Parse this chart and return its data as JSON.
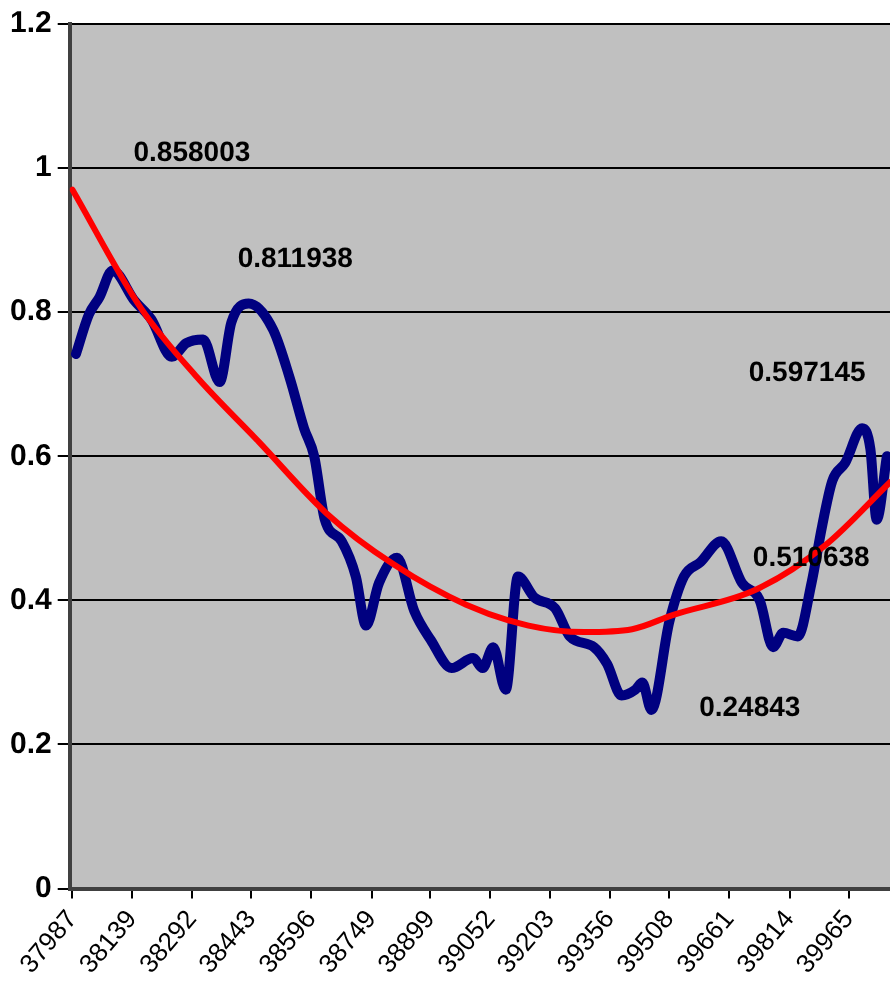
{
  "chart_data": {
    "type": "line",
    "xlim": [
      37980,
      40070
    ],
    "ylim": [
      0,
      1.2
    ],
    "xticks": [
      37987,
      38139,
      38292,
      38443,
      38596,
      38749,
      38899,
      39052,
      39203,
      39356,
      39508,
      39661,
      39814,
      39965
    ],
    "yticks": [
      0,
      0.2,
      0.4,
      0.6,
      0.8,
      1,
      1.2
    ],
    "grid": "y",
    "legend": false,
    "marker": "none",
    "line_style": "solid",
    "series": [
      {
        "color": "#000080",
        "x": [
          37996,
          38029,
          38056,
          38089,
          38145,
          38188,
          38240,
          38277,
          38320,
          38362,
          38392,
          38436,
          38498,
          38541,
          38577,
          38603,
          38630,
          38673,
          38709,
          38735,
          38768,
          38814,
          38858,
          38900,
          38953,
          39008,
          39032,
          39059,
          39091,
          39122,
          39164,
          39217,
          39254,
          39316,
          39349,
          39386,
          39421,
          39439,
          39462,
          39508,
          39545,
          39587,
          39640,
          39693,
          39738,
          39772,
          39798,
          39835,
          39870,
          39897,
          39923,
          39956,
          39999,
          40020,
          40036,
          40062
        ],
        "values": [
          0.742,
          0.797,
          0.821,
          0.858,
          0.816,
          0.79,
          0.738,
          0.757,
          0.762,
          0.703,
          0.786,
          0.812,
          0.776,
          0.708,
          0.639,
          0.6,
          0.512,
          0.482,
          0.433,
          0.365,
          0.424,
          0.459,
          0.385,
          0.345,
          0.306,
          0.32,
          0.306,
          0.335,
          0.276,
          0.433,
          0.404,
          0.389,
          0.35,
          0.335,
          0.312,
          0.268,
          0.276,
          0.286,
          0.248,
          0.371,
          0.433,
          0.453,
          0.482,
          0.424,
          0.4,
          0.335,
          0.355,
          0.35,
          0.424,
          0.503,
          0.566,
          0.591,
          0.639,
          0.61,
          0.512,
          0.6
        ]
      },
      {
        "color": "#ff0000",
        "type": "line",
        "x": [
          37987,
          38161,
          38304,
          38462,
          38636,
          38805,
          38990,
          39149,
          39291,
          39413,
          39518,
          39729,
          39904,
          40070
        ],
        "values": [
          0.97,
          0.806,
          0.71,
          0.62,
          0.52,
          0.45,
          0.394,
          0.365,
          0.356,
          0.36,
          0.38,
          0.415,
          0.476,
          0.564
        ]
      }
    ],
    "annotations": [
      "0.858003",
      "0.811938",
      "0.597145",
      "0.510638",
      "0.24843"
    ]
  }
}
